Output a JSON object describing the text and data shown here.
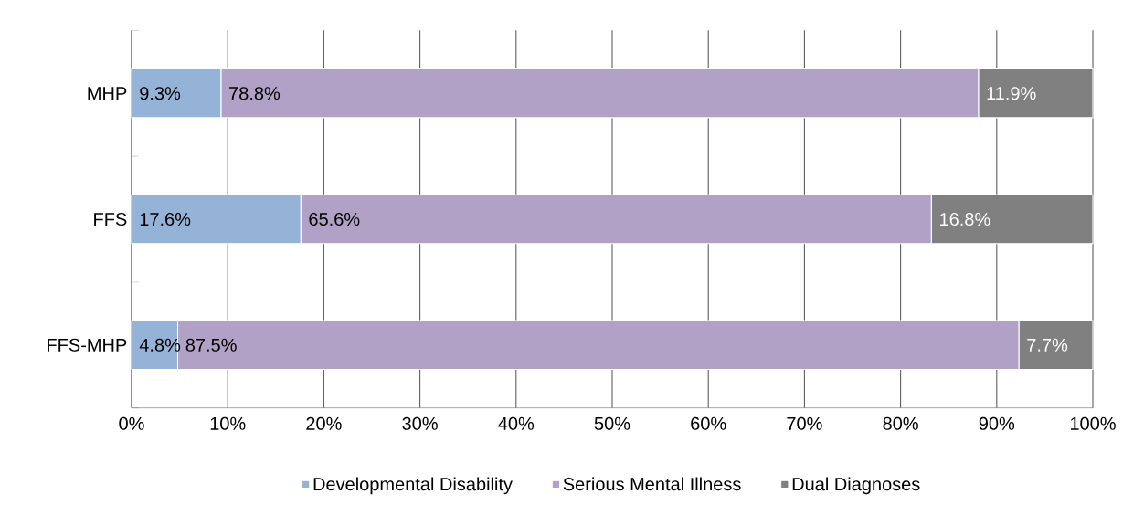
{
  "chart_data": {
    "type": "bar",
    "orientation": "horizontal",
    "stacked": true,
    "categories": [
      "MHP",
      "FFS",
      "FFS-MHP"
    ],
    "series": [
      {
        "name": "Developmental Disability",
        "color": "#95b3d7",
        "values": [
          9.3,
          17.6,
          4.8
        ],
        "value_labels": [
          "9.3%",
          "17.6%",
          "4.8%"
        ]
      },
      {
        "name": "Serious Mental Illness",
        "color": "#b2a1c7",
        "values": [
          78.8,
          65.6,
          87.5
        ],
        "value_labels": [
          "78.8%",
          "65.6%",
          "87.5%"
        ]
      },
      {
        "name": "Dual Diagnoses",
        "color": "#808080",
        "values": [
          11.9,
          16.8,
          7.7
        ],
        "value_labels": [
          "11.9%",
          "16.8%",
          "7.7%"
        ]
      }
    ],
    "xlim": [
      0,
      100
    ],
    "xticks": [
      {
        "value": 0,
        "label": "0%"
      },
      {
        "value": 10,
        "label": "10%"
      },
      {
        "value": 20,
        "label": "20%"
      },
      {
        "value": 30,
        "label": "30%"
      },
      {
        "value": 40,
        "label": "40%"
      },
      {
        "value": 50,
        "label": "50%"
      },
      {
        "value": 60,
        "label": "60%"
      },
      {
        "value": 70,
        "label": "70%"
      },
      {
        "value": 80,
        "label": "80%"
      },
      {
        "value": 90,
        "label": "90%"
      },
      {
        "value": 100,
        "label": "100%"
      }
    ],
    "grid": "x",
    "legend": "bottom"
  }
}
